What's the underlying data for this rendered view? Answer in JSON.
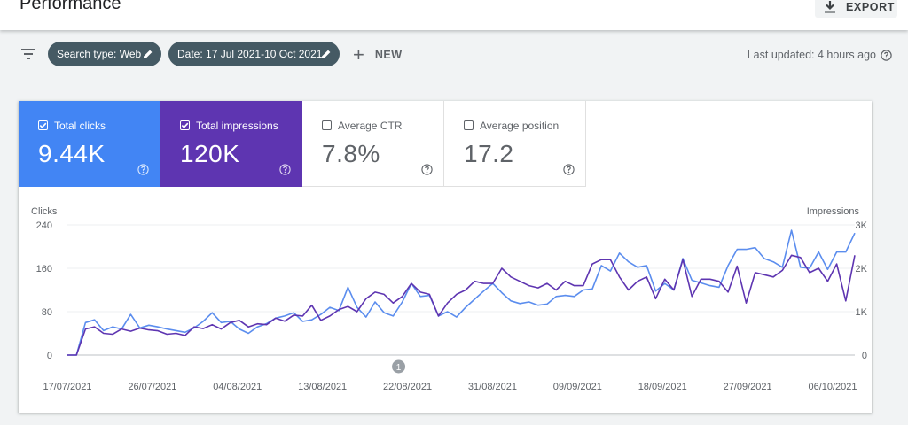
{
  "header": {
    "title": "Performance",
    "export_label": "EXPORT"
  },
  "filters": {
    "chips": [
      {
        "label": "Search type: Web"
      },
      {
        "label": "Date: 17 Jul 2021-10 Oct 2021"
      }
    ],
    "new_label": "NEW",
    "last_updated": "Last updated: 4 hours ago"
  },
  "metrics": [
    {
      "label": "Total clicks",
      "value": "9.44K",
      "checked": true,
      "color": "#4285f4"
    },
    {
      "label": "Total impressions",
      "value": "120K",
      "checked": true,
      "color": "#5e35b1"
    },
    {
      "label": "Average CTR",
      "value": "7.8%",
      "checked": false
    },
    {
      "label": "Average position",
      "value": "17.2",
      "checked": false
    }
  ],
  "chart_data": {
    "type": "line",
    "left_axis_title": "Clicks",
    "right_axis_title": "Impressions",
    "y_left": {
      "min": 0,
      "max": 240,
      "ticks": [
        "0",
        "80",
        "160",
        "240"
      ]
    },
    "y_right": {
      "min": 0,
      "max": 3000,
      "ticks": [
        "0",
        "1K",
        "2K",
        "3K"
      ]
    },
    "x_labels": [
      "17/07/2021",
      "26/07/2021",
      "04/08/2021",
      "13/08/2021",
      "22/08/2021",
      "31/08/2021",
      "09/09/2021",
      "18/09/2021",
      "27/09/2021",
      "06/10/2021"
    ],
    "annotation": {
      "label": "1",
      "date": "22/08/2021"
    },
    "series": [
      {
        "name": "Clicks",
        "axis": "left",
        "color": "#5b8dee",
        "values": [
          0,
          0,
          60,
          65,
          45,
          52,
          48,
          75,
          50,
          55,
          52,
          48,
          45,
          42,
          50,
          62,
          78,
          60,
          62,
          48,
          40,
          52,
          58,
          68,
          72,
          78,
          62,
          65,
          75,
          88,
          82,
          125,
          88,
          70,
          98,
          78,
          72,
          98,
          132,
          108,
          110,
          72,
          80,
          70,
          88,
          103,
          118,
          132,
          115,
          100,
          95,
          98,
          92,
          94,
          108,
          110,
          108,
          120,
          122,
          165,
          155,
          188,
          172,
          162,
          165,
          118,
          132,
          120,
          178,
          138,
          133,
          128,
          125,
          165,
          195,
          195,
          198,
          178,
          172,
          162,
          230,
          162,
          160,
          190,
          158,
          190,
          190,
          225
        ]
      },
      {
        "name": "Impressions",
        "axis": "right",
        "color": "#5e35b1",
        "values": [
          0,
          0,
          600,
          650,
          500,
          480,
          600,
          550,
          620,
          580,
          560,
          480,
          500,
          450,
          650,
          610,
          700,
          600,
          750,
          800,
          650,
          720,
          700,
          850,
          780,
          920,
          900,
          1150,
          800,
          900,
          1050,
          1120,
          1000,
          1300,
          1450,
          1400,
          1200,
          1350,
          1650,
          1450,
          1400,
          900,
          1200,
          1400,
          1500,
          1700,
          1650,
          1650,
          2000,
          1800,
          1700,
          1600,
          1550,
          1650,
          1500,
          1700,
          1600,
          1600,
          2100,
          2200,
          2200,
          1800,
          1500,
          1700,
          1800,
          1300,
          1750,
          1500,
          2200,
          1350,
          1750,
          1750,
          1700,
          1450,
          2050,
          1200,
          1900,
          1850,
          1800,
          1950,
          2300,
          2250,
          1900,
          2000,
          1700,
          2100,
          1250,
          2300
        ]
      }
    ]
  }
}
